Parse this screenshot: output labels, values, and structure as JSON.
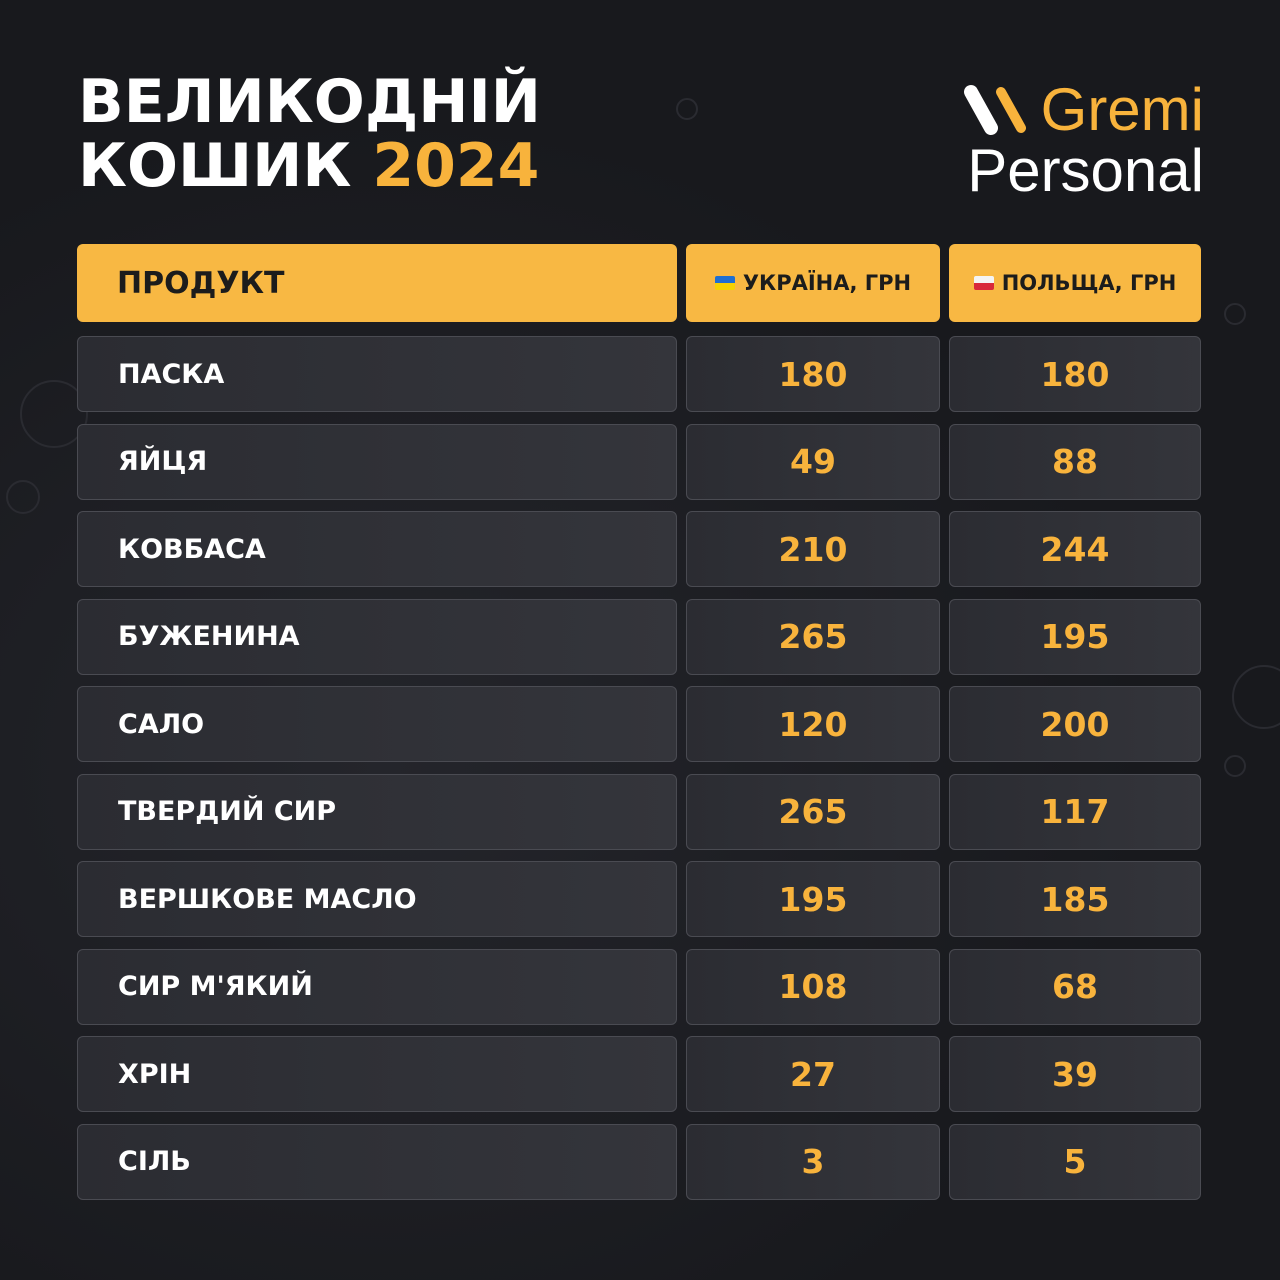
{
  "title": {
    "line1": "ВЕЛИКОДНІЙ",
    "line2": "КОШИК",
    "year": "2024"
  },
  "logo": {
    "brand": "Gremi",
    "sub": "Personal"
  },
  "colors": {
    "accent": "#f8b33c",
    "header_bg": "#f8b843",
    "background": "#18191d"
  },
  "table": {
    "headers": [
      {
        "label": "ПРОДУКТ"
      },
      {
        "label": "УКРАЇНА, ГРН",
        "flag": "ukraine-flag-icon"
      },
      {
        "label": "ПОЛЬЩА, ГРН",
        "flag": "poland-flag-icon"
      }
    ],
    "rows": [
      {
        "product": "ПАСКА",
        "ukraine": "180",
        "poland": "180"
      },
      {
        "product": "ЯЙЦЯ",
        "ukraine": "49",
        "poland": "88"
      },
      {
        "product": "КОВБАСА",
        "ukraine": "210",
        "poland": "244"
      },
      {
        "product": "БУЖЕНИНА",
        "ukraine": "265",
        "poland": "195"
      },
      {
        "product": "САЛО",
        "ukraine": "120",
        "poland": "200"
      },
      {
        "product": "ТВЕРДИЙ СИР",
        "ukraine": "265",
        "poland": "117"
      },
      {
        "product": "ВЕРШКОВЕ МАСЛО",
        "ukraine": "195",
        "poland": "185"
      },
      {
        "product": "СИР М'ЯКИЙ",
        "ukraine": "108",
        "poland": "68"
      },
      {
        "product": "ХРІН",
        "ukraine": "27",
        "poland": "39"
      },
      {
        "product": "СІЛЬ",
        "ukraine": "3",
        "poland": "5"
      }
    ]
  }
}
